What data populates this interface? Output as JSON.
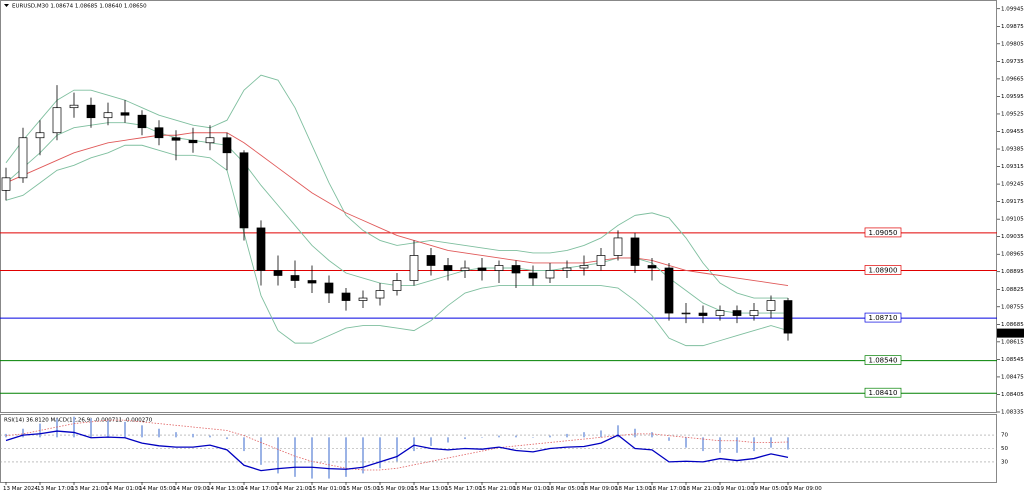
{
  "chart_data": [
    {
      "type": "candlestick",
      "title": "EURUSD,M30",
      "header_values": [
        1.08674,
        1.08685,
        {
          "value": 1.0864,
          "label": "1.08640"
        },
        {
          "value": 1.0865,
          "label": "1.08650"
        }
      ],
      "categories": [
        "13 Mar 2024",
        null,
        "13 Mar 17:00",
        null,
        "13 Mar 21:00",
        null,
        "14 Mar 01:00",
        null,
        "14 Mar 05:00",
        null,
        "14 Mar 09:00",
        null,
        "14 Mar 13:00",
        null,
        "14 Mar 17:00",
        null,
        "14 Mar 21:00",
        null,
        "15 Mar 01:00",
        null,
        "15 Mar 05:00",
        null,
        "15 Mar 09:00",
        null,
        "15 Mar 13:00",
        null,
        "15 Mar 17:00",
        null,
        "15 Mar 21:00",
        null,
        "18 Mar 01:00",
        null,
        "18 Mar 05:00",
        null,
        "18 Mar 09:00",
        null,
        "18 Mar 13:00",
        null,
        "18 Mar 17:00",
        null,
        "18 Mar 21:00",
        null,
        "19 Mar 01:00",
        null,
        "19 Mar 05:00",
        null,
        "19 Mar 09:00"
      ],
      "open": [
        1.0922,
        1.0927,
        1.0943,
        1.0945,
        1.0955,
        1.0956,
        1.0951,
        1.0953,
        1.0952,
        1.0947,
        1.0943,
        1.0942,
        1.0941,
        1.0943,
        1.0937,
        1.0907,
        1.089,
        1.0888,
        1.0886,
        1.0885,
        1.0881,
        1.0878,
        1.0879,
        1.0882,
        1.0886,
        1.0896,
        1.0892,
        1.089,
        1.0891,
        1.089,
        1.0892,
        1.0889,
        1.0887,
        1.089,
        1.0891,
        1.0892,
        1.0896,
        1.0903,
        1.0892,
        1.0891,
        1.0873,
        1.0873,
        1.0872,
        1.0874,
        1.0872,
        1.0874,
        1.0878
      ],
      "high": [
        1.0931,
        1.0947,
        1.095,
        1.0964,
        1.0961,
        1.0959,
        1.0957,
        1.0958,
        1.0954,
        1.095,
        1.0946,
        1.0947,
        1.0948,
        1.0945,
        1.0938,
        1.091,
        1.0896,
        1.0894,
        1.0892,
        1.0888,
        1.0883,
        1.0882,
        1.0885,
        1.0889,
        1.0902,
        1.0899,
        1.0895,
        1.0894,
        1.0895,
        1.0894,
        1.0894,
        1.0892,
        1.0893,
        1.0894,
        1.0896,
        1.0899,
        1.0906,
        1.0905,
        1.0895,
        1.0893,
        1.0877,
        1.0876,
        1.0876,
        1.0876,
        1.0877,
        1.088,
        1.0879
      ],
      "low": [
        1.0918,
        1.0925,
        1.0936,
        1.0942,
        1.0951,
        1.0947,
        1.0948,
        1.0949,
        1.0944,
        1.094,
        1.0934,
        1.0937,
        1.0938,
        1.093,
        1.0902,
        1.0884,
        1.0884,
        1.0883,
        1.0881,
        1.0877,
        1.0874,
        1.0875,
        1.0876,
        1.088,
        1.0884,
        1.0888,
        1.0886,
        1.0887,
        1.0886,
        1.0885,
        1.0883,
        1.0884,
        1.0885,
        1.0887,
        1.0888,
        1.089,
        1.0894,
        1.0889,
        1.0886,
        1.087,
        1.0869,
        1.0869,
        1.087,
        1.0869,
        1.087,
        1.0871,
        1.0862
      ],
      "close": [
        1.0927,
        1.0943,
        1.0945,
        1.0955,
        1.0956,
        1.0951,
        1.0953,
        1.0952,
        1.0947,
        1.0943,
        1.0942,
        1.0941,
        1.0943,
        1.0937,
        1.0907,
        1.089,
        1.0888,
        1.0886,
        1.0885,
        1.0881,
        1.0878,
        1.0879,
        1.0882,
        1.0886,
        1.0896,
        1.0892,
        1.089,
        1.0891,
        1.089,
        1.0892,
        1.0889,
        1.0887,
        1.089,
        1.0891,
        1.0892,
        1.0896,
        1.0903,
        1.0892,
        1.0891,
        1.0873,
        1.0873,
        1.0872,
        1.0874,
        1.0872,
        1.0874,
        1.0878,
        1.0865
      ],
      "lines": [
        {
          "color": "#7fbf9f",
          "values": [
            1.0933,
            1.0942,
            1.095,
            1.0958,
            1.0962,
            1.0962,
            1.096,
            1.0958,
            1.0955,
            1.0952,
            1.095,
            1.0948,
            1.0947,
            1.095,
            1.0962,
            1.0968,
            1.0966,
            1.0955,
            1.094,
            1.0925,
            1.0912,
            1.0906,
            1.0902,
            1.09,
            1.0901,
            1.0902,
            1.0901,
            1.09,
            1.0899,
            1.0898,
            1.0898,
            1.0897,
            1.0897,
            1.0898,
            1.09,
            1.0903,
            1.0908,
            1.0912,
            1.0913,
            1.0911,
            1.0903,
            1.0893,
            1.0885,
            1.0881,
            1.0879,
            1.0879,
            1.0879
          ]
        },
        {
          "color": "#7fbf9f",
          "values": [
            1.0925,
            1.0931,
            1.0937,
            1.0944,
            1.0947,
            1.0948,
            1.0949,
            1.0949,
            1.0948,
            1.0945,
            1.0943,
            1.0942,
            1.0941,
            1.094,
            1.0933,
            1.0924,
            1.0916,
            1.0908,
            1.09,
            1.0894,
            1.0889,
            1.0887,
            1.0885,
            1.0884,
            1.0884,
            1.0886,
            1.0888,
            1.089,
            1.0891,
            1.0891,
            1.0891,
            1.089,
            1.089,
            1.0891,
            1.0892,
            1.0893,
            1.0895,
            1.0895,
            1.0893,
            1.0887,
            1.0882,
            1.0877,
            1.0874,
            1.0873,
            1.0873,
            1.0873,
            1.0873
          ]
        },
        {
          "color": "#7fbf9f",
          "values": [
            1.0918,
            1.092,
            1.0925,
            1.093,
            1.0932,
            1.0935,
            1.0937,
            1.094,
            1.094,
            1.0938,
            1.0936,
            1.0936,
            1.0935,
            1.093,
            1.0905,
            1.088,
            1.0866,
            1.0861,
            1.0861,
            1.0864,
            1.0867,
            1.0868,
            1.0868,
            1.0867,
            1.0866,
            1.087,
            1.0876,
            1.0881,
            1.0883,
            1.0884,
            1.0884,
            1.0884,
            1.0884,
            1.0884,
            1.0884,
            1.0884,
            1.0883,
            1.0878,
            1.0872,
            1.0863,
            1.086,
            1.086,
            1.0862,
            1.0864,
            1.0866,
            1.0868,
            1.0866
          ]
        },
        {
          "color": "#e05a5a",
          "values": [
            1.0925,
            1.0928,
            1.0931,
            1.0934,
            1.0937,
            1.0939,
            1.0941,
            1.0942,
            1.0943,
            1.0944,
            1.0944,
            1.0945,
            1.0945,
            1.0945,
            1.0941,
            1.0936,
            1.0931,
            1.0926,
            1.0921,
            1.0917,
            1.0913,
            1.091,
            1.0907,
            1.0904,
            1.0902,
            1.09,
            1.0898,
            1.0897,
            1.0896,
            1.0895,
            1.0894,
            1.0893,
            1.0893,
            1.0893,
            1.0893,
            1.0894,
            1.0895,
            1.0895,
            1.0894,
            1.0892,
            1.089,
            1.0889,
            1.0888,
            1.0887,
            1.0886,
            1.0885,
            1.0884
          ]
        }
      ],
      "levels": [
        {
          "value": 1.0905,
          "label": "1.09050",
          "color": "#e00000"
        },
        {
          "value": 1.089,
          "label": "1.08900",
          "color": "#e00000"
        },
        {
          "value": 1.0871,
          "label": "1.08710",
          "color": "#0000e0"
        },
        {
          "value": 1.0854,
          "label": "1.08540",
          "color": "#008000"
        },
        {
          "value": 1.0841,
          "label": "1.08410",
          "color": "#008000"
        }
      ],
      "ylim": [
        1.08335,
        1.0998
      ],
      "yticks": [
        1.09945,
        1.09875,
        1.09805,
        1.09735,
        1.09665,
        1.09595,
        1.09525,
        1.09455,
        1.09385,
        1.09315,
        1.09245,
        1.09175,
        1.09105,
        1.09035,
        1.08965,
        1.08895,
        1.08825,
        1.08755,
        1.08685,
        1.08615,
        1.08545,
        1.08475,
        1.08405,
        1.08335
      ]
    },
    {
      "type": "indicator",
      "title": "RSI(14)",
      "title_value": {
        "value": 36.812,
        "label": "36.8120"
      },
      "subtitle": "MACD(12,26,9)",
      "subtitle_values": [
        -0.000711,
        {
          "value": -0.00027,
          "label": "-0.000270"
        }
      ],
      "ylim": [
        0,
        100
      ],
      "yticks": [
        30,
        50,
        70
      ],
      "y2lim": [
        -0.0026,
        0.0013
      ],
      "series": [
        {
          "color": "#9bb3e6",
          "axis": "y2",
          "style": "bars",
          "values": [
            0.0002,
            0.0005,
            0.0008,
            0.0011,
            0.0012,
            0.0011,
            0.001,
            0.0009,
            0.0007,
            0.0005,
            0.0003,
            0.0002,
            0.0001,
            -0.0001,
            -0.0008,
            -0.0016,
            -0.0021,
            -0.0023,
            -0.0024,
            -0.0024,
            -0.0023,
            -0.0021,
            -0.0018,
            -0.0014,
            -0.0008,
            -0.0005,
            -0.0003,
            -0.0001,
            0,
            0.0001,
            0.0001,
            0,
            0.0001,
            0.0002,
            0.0003,
            0.0004,
            0.0007,
            0.0005,
            0.0003,
            -0.0002,
            -0.0006,
            -0.0008,
            -0.0009,
            -0.0009,
            -0.0008,
            -0.0006,
            -0.000711
          ]
        },
        {
          "color": "#e06060",
          "axis": "y2",
          "style": "dotted",
          "values": [
            0.0001,
            0.0002,
            0.0004,
            0.0006,
            0.0008,
            0.0009,
            0.001,
            0.001,
            0.0009,
            0.0008,
            0.0007,
            0.0006,
            0.0005,
            0.0004,
            0.0001,
            -0.0003,
            -0.0007,
            -0.0011,
            -0.0014,
            -0.0016,
            -0.0018,
            -0.0019,
            -0.0019,
            -0.0018,
            -0.0016,
            -0.0014,
            -0.0012,
            -0.001,
            -0.0008,
            -0.0006,
            -0.0005,
            -0.0004,
            -0.0003,
            -0.0002,
            -0.0001,
            0,
            0.0001,
            0.0002,
            0.0002,
            0.0001,
            0,
            -0.0001,
            -0.0002,
            -0.0002,
            -0.0003,
            -0.0003,
            -0.00027
          ]
        },
        {
          "color": "#0000c0",
          "style": "solid",
          "values": [
            62,
            70,
            72,
            76,
            74,
            66,
            67,
            66,
            58,
            54,
            52,
            52,
            55,
            48,
            25,
            17,
            20,
            22,
            22,
            20,
            19,
            22,
            30,
            38,
            55,
            50,
            48,
            50,
            49,
            52,
            47,
            45,
            50,
            52,
            53,
            58,
            70,
            50,
            48,
            30,
            31,
            30,
            35,
            32,
            35,
            42,
            36.812
          ]
        }
      ]
    }
  ]
}
